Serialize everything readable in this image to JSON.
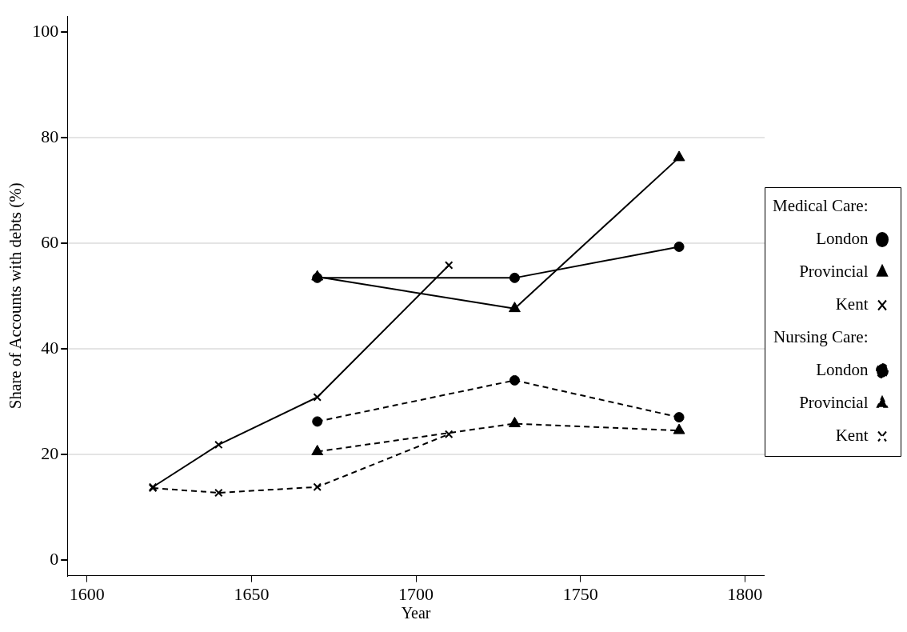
{
  "chart_data": {
    "type": "line",
    "xlabel": "Year",
    "ylabel": "Share of Accounts with debts (%)",
    "xlim": [
      1594,
      1806
    ],
    "ylim": [
      -3,
      103
    ],
    "xticks": [
      1600,
      1650,
      1700,
      1750,
      1800
    ],
    "yticks": [
      0,
      20,
      40,
      60,
      80,
      100
    ],
    "grid": "y",
    "legend": "right",
    "annotations": [
      "Medical Care:",
      "Nursing Care:"
    ],
    "series": [
      {
        "name": "London",
        "color": "#000000",
        "marker": "circle",
        "line_style": "solid",
        "x": [
          1670,
          1730,
          1780
        ],
        "values": [
          53.4,
          53.4,
          59.3
        ]
      },
      {
        "name": "Provincial",
        "color": "#000000",
        "marker": "triangle",
        "line_style": "solid",
        "x": [
          1670,
          1730,
          1780
        ],
        "values": [
          53.6,
          47.6,
          76.2
        ]
      },
      {
        "name": "Kent",
        "color": "#000000",
        "marker": "cross",
        "line_style": "solid",
        "x": [
          1620,
          1640,
          1670,
          1710
        ],
        "values": [
          13.8,
          21.8,
          30.8,
          55.8
        ]
      },
      {
        "name": "London",
        "color": "#000000",
        "marker": "circle",
        "line_style": "dashed",
        "x": [
          1670,
          1730,
          1780
        ],
        "values": [
          26.2,
          34.0,
          27.0
        ]
      },
      {
        "name": "Provincial",
        "color": "#000000",
        "marker": "triangle",
        "line_style": "dashed",
        "x": [
          1670,
          1730,
          1780
        ],
        "values": [
          20.5,
          25.8,
          24.5
        ]
      },
      {
        "name": "Kent",
        "color": "#000000",
        "marker": "cross",
        "line_style": "dashed",
        "x": [
          1620,
          1640,
          1670,
          1710
        ],
        "values": [
          13.6,
          12.7,
          13.8,
          23.8
        ]
      }
    ]
  }
}
